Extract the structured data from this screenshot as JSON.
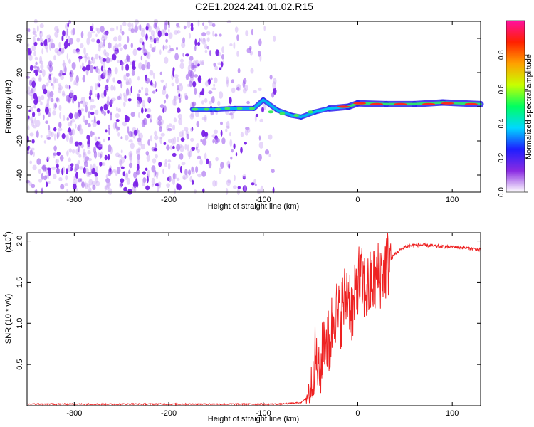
{
  "chart_data": [
    {
      "type": "heatmap",
      "title": "C2E1.2024.241.01.02.R15",
      "xlabel": "Height of straight line (km)",
      "ylabel": "Frequency (Hz)",
      "xlim": [
        -350,
        130
      ],
      "ylim": [
        -50,
        50
      ],
      "xticks": [
        -300,
        -200,
        -100,
        0,
        100
      ],
      "yticks": [
        -40,
        -20,
        0,
        20,
        40
      ],
      "colorbar": {
        "label": "Normalized spectral amplitude",
        "range": [
          0,
          1
        ],
        "ticks": [
          "0.0",
          "0.2",
          "0.4",
          "0.6",
          "0.8"
        ],
        "colormap": [
          "#ffffff",
          "#8a2be2",
          "#1e1eff",
          "#00d8ff",
          "#00ff60",
          "#c8ff00",
          "#ffa000",
          "#ff2000",
          "#ff10a0"
        ]
      },
      "features": {
        "noise_region_x": [
          -350,
          -80
        ],
        "signal_trace": [
          {
            "x": -175,
            "f": -1.5
          },
          {
            "x": -150,
            "f": -1.5
          },
          {
            "x": -130,
            "f": -1
          },
          {
            "x": -110,
            "f": -1
          },
          {
            "x": -100,
            "f": 4
          },
          {
            "x": -85,
            "f": -2
          },
          {
            "x": -70,
            "f": -5
          },
          {
            "x": -60,
            "f": -6
          },
          {
            "x": -45,
            "f": -3
          },
          {
            "x": -30,
            "f": -1
          },
          {
            "x": -10,
            "f": 0
          },
          {
            "x": 0,
            "f": 2
          },
          {
            "x": 30,
            "f": 1.5
          },
          {
            "x": 60,
            "f": 1.5
          },
          {
            "x": 90,
            "f": 2.5
          },
          {
            "x": 130,
            "f": 1.5
          }
        ]
      }
    },
    {
      "type": "line",
      "xlabel": "Height of straight line (km)",
      "ylabel": "SNR (10 * v/v)",
      "y_multiplier": "(x10",
      "y_multiplier_exponent": "4",
      "y_multiplier_close": ")",
      "xlim": [
        -350,
        130
      ],
      "ylim": [
        0,
        2.1
      ],
      "xticks": [
        -300,
        -200,
        -100,
        0,
        100
      ],
      "yticks": [
        "0.5",
        "1.0",
        "1.5",
        "2.0"
      ],
      "series": [
        {
          "color": "#ee2222",
          "x": [
            -350,
            -300,
            -250,
            -200,
            -150,
            -100,
            -80,
            -60,
            -55,
            -50,
            -45,
            -40,
            -35,
            -30,
            -25,
            -20,
            -15,
            -10,
            -5,
            0,
            10,
            20,
            30,
            40,
            50,
            60,
            70,
            80,
            90,
            100,
            110,
            120,
            130
          ],
          "y": [
            0.02,
            0.02,
            0.02,
            0.02,
            0.02,
            0.02,
            0.02,
            0.04,
            0.08,
            0.2,
            0.6,
            0.35,
            0.9,
            0.7,
            1.2,
            1.05,
            1.25,
            1.4,
            1.1,
            1.55,
            1.4,
            1.55,
            1.7,
            1.85,
            1.93,
            1.95,
            1.95,
            1.94,
            1.93,
            1.93,
            1.92,
            1.91,
            1.89
          ]
        }
      ]
    }
  ]
}
